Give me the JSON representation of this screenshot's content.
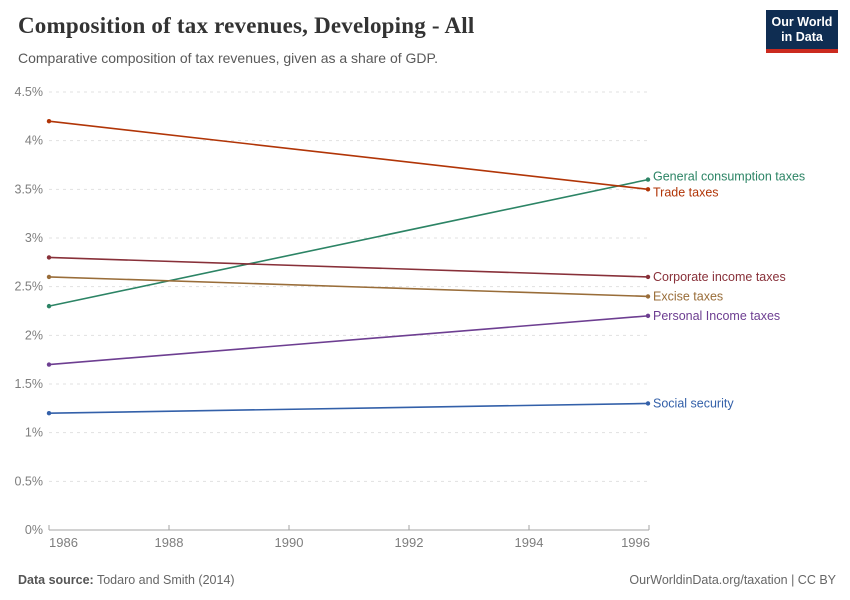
{
  "header": {
    "title": "Composition of tax revenues, Developing - All",
    "subtitle": "Comparative composition of tax revenues, given as a share of GDP.",
    "logo": {
      "line1": "Our World",
      "line2": "in Data",
      "bg_color": "#0F2D52",
      "accent_color": "#CB2A1F"
    }
  },
  "chart_data": {
    "type": "line",
    "x": [
      1986,
      1996
    ],
    "xlim": [
      1986,
      1996
    ],
    "ylim": [
      0,
      4.5
    ],
    "grid": "horizontal dashed",
    "legend_position": "right-edge series labels",
    "xticks": [
      1986,
      1988,
      1990,
      1992,
      1994,
      1996
    ],
    "yticks": [
      "0%",
      "0.5%",
      "1%",
      "1.5%",
      "2%",
      "2.5%",
      "3%",
      "3.5%",
      "4%",
      "4.5%"
    ],
    "ytick_values": [
      0,
      0.5,
      1,
      1.5,
      2,
      2.5,
      3,
      3.5,
      4,
      4.5
    ],
    "series": [
      {
        "name": "General consumption taxes",
        "values": [
          2.3,
          3.6
        ],
        "color": "#2C8465"
      },
      {
        "name": "Trade taxes",
        "values": [
          4.2,
          3.5
        ],
        "color": "#B13507"
      },
      {
        "name": "Corporate income taxes",
        "values": [
          2.8,
          2.6
        ],
        "color": "#883039"
      },
      {
        "name": "Excise taxes",
        "values": [
          2.6,
          2.4
        ],
        "color": "#996D39"
      },
      {
        "name": "Personal Income taxes",
        "values": [
          1.7,
          2.2
        ],
        "color": "#6D3E91"
      },
      {
        "name": "Social security",
        "values": [
          1.2,
          1.3
        ],
        "color": "#3360A9"
      }
    ]
  },
  "colors": {
    "grid": "#e1e1e1",
    "axis": "#a5a5a5",
    "tick_text": "#7e7e7e"
  },
  "footer": {
    "source_label": "Data source:",
    "source_value": "Todaro and Smith (2014)",
    "credit": "OurWorldinData.org/taxation | CC BY"
  }
}
